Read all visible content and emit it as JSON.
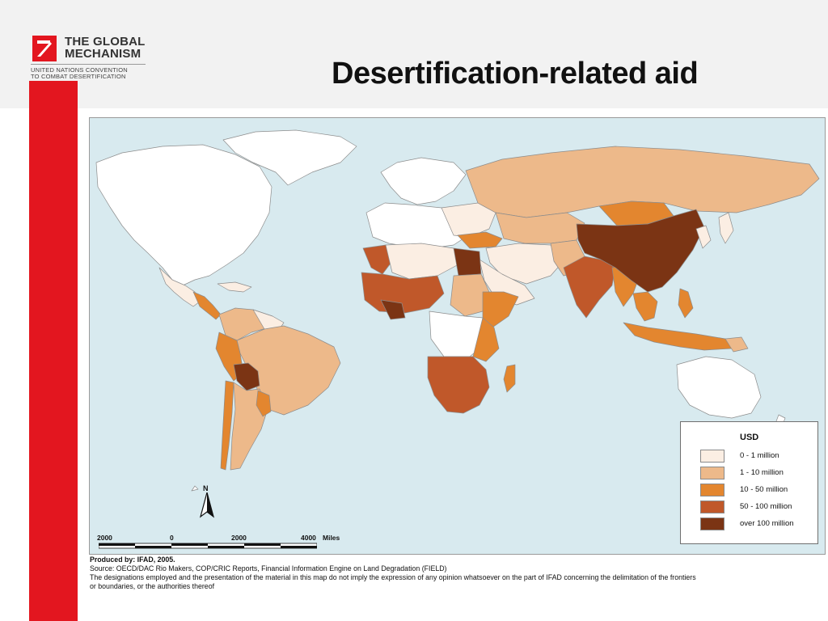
{
  "slide": {
    "title": "Desertification-related aid"
  },
  "logo": {
    "line1": "THE GLOBAL",
    "line2": "MECHANISM",
    "sub1": "UNITED NATIONS CONVENTION",
    "sub2": "TO COMBAT DESERTIFICATION"
  },
  "legend": {
    "title": "USD",
    "items": [
      {
        "label": "0 - 1 million",
        "color": "#fbeee3"
      },
      {
        "label": "1 - 10 million",
        "color": "#edb98a"
      },
      {
        "label": "10 - 50 million",
        "color": "#e3862f"
      },
      {
        "label": "50 - 100 million",
        "color": "#c0582a"
      },
      {
        "label": "over 100 million",
        "color": "#7b3414"
      }
    ]
  },
  "map": {
    "ocean_color": "#d8eaef",
    "no_data_color": "#ffffff",
    "north_label": "N",
    "scale": {
      "ticks": [
        "2000",
        "0",
        "2000",
        "4000"
      ],
      "unit": "Miles"
    }
  },
  "credits": {
    "produced_by": "Produced by: IFAD, 2005.",
    "source": "Source: OECD/DAC Rio Makers, COP/CRIC Reports, Financial Information Engine on Land Degradation (FIELD)",
    "disclaimer_1": "The designations employed and the presentation of the material in this map do not imply the expression of any opinion whatsoever on the part of IFAD concerning the delimitation of the frontiers",
    "disclaimer_2": "or boundaries, or the authorities thereof"
  }
}
